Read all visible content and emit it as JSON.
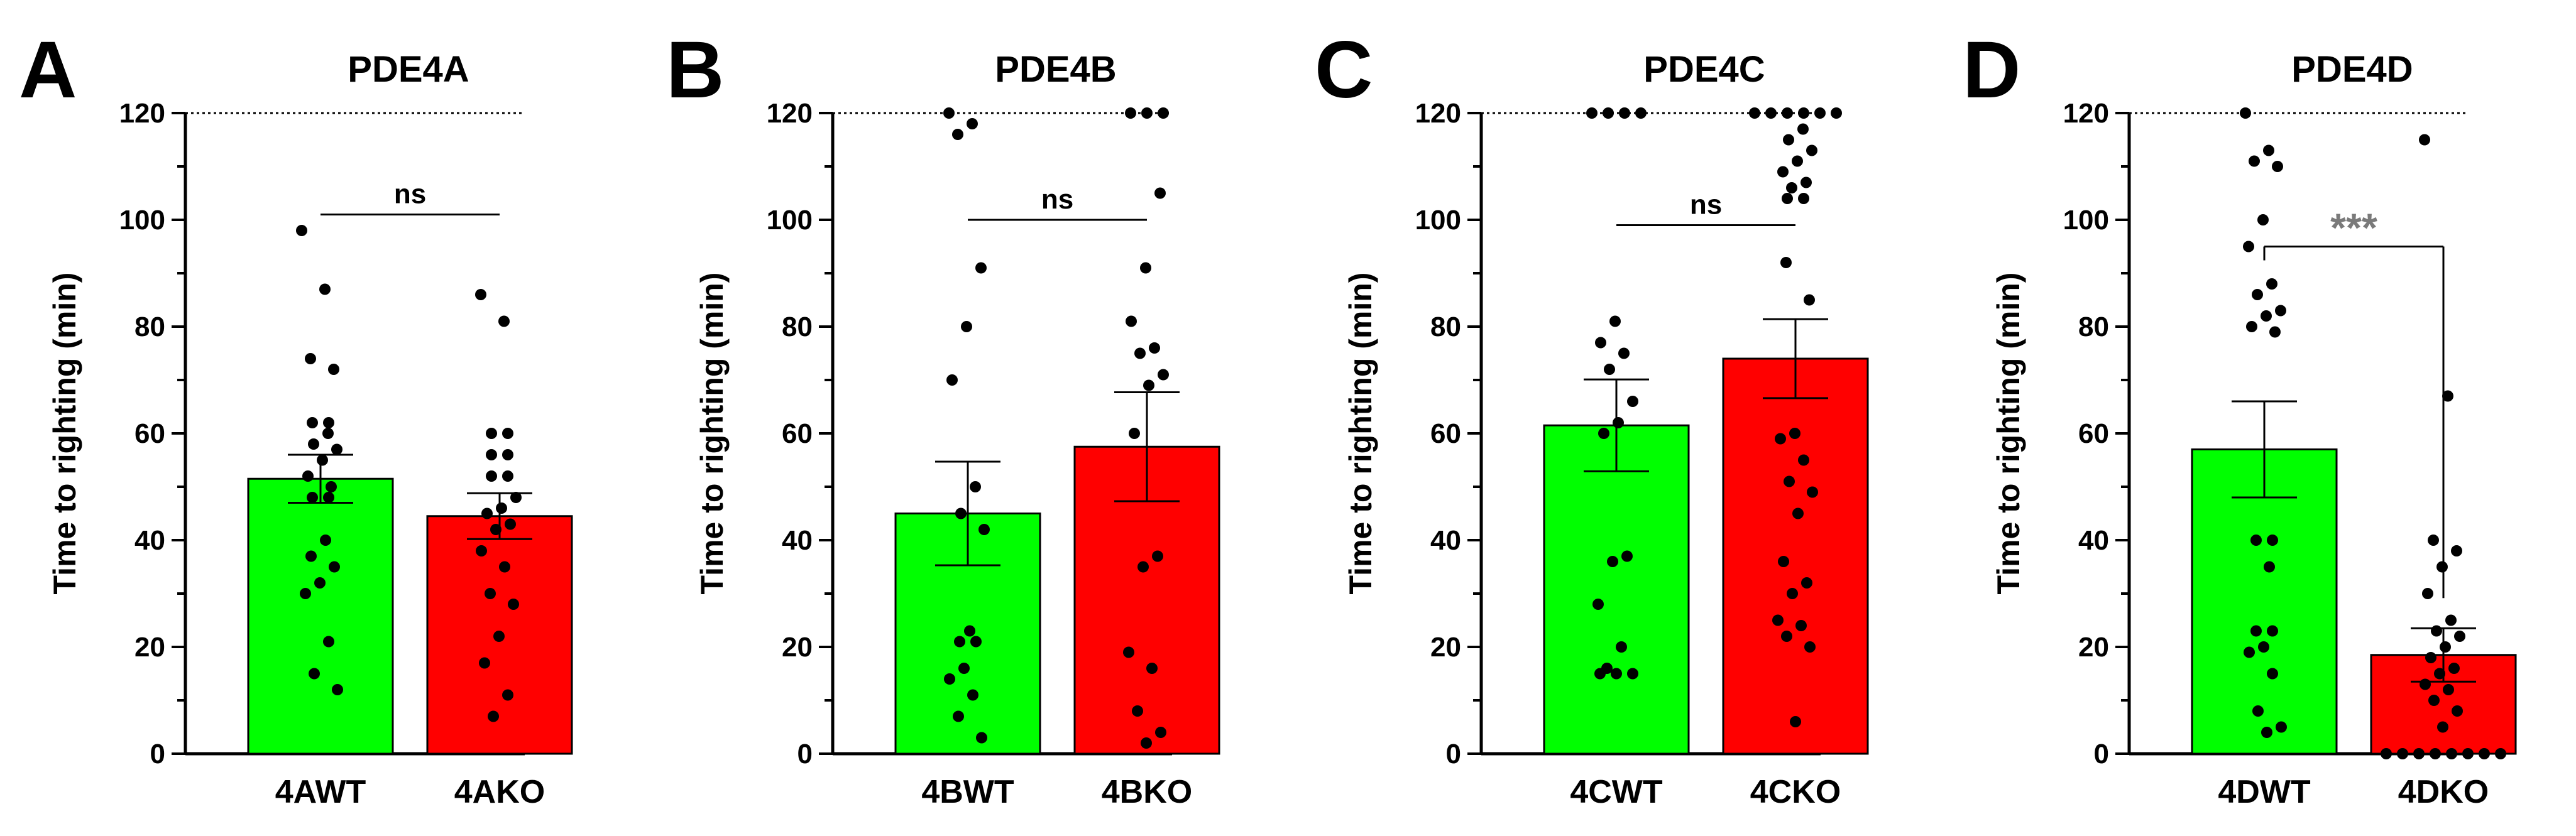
{
  "colors": {
    "wt": "#00ff00",
    "ko": "#ff0000",
    "axis": "#000000",
    "sig_star": "#7a7a7a"
  },
  "chart_data": [
    {
      "type": "bar",
      "panel": "A",
      "title": "PDE4A",
      "ylabel": "Time to righting (min)",
      "ylim": [
        0,
        120
      ],
      "yticks": [
        0,
        20,
        40,
        60,
        80,
        100,
        120
      ],
      "reference_line": 120,
      "categories": [
        "4AWT",
        "4AKO"
      ],
      "values": [
        51.5,
        44.5
      ],
      "sem": [
        4.5,
        4.3
      ],
      "points": [
        [
          98,
          87,
          74,
          72,
          62,
          62,
          60,
          58,
          57,
          55,
          52,
          50,
          48,
          48,
          40,
          37,
          35,
          32,
          30,
          21,
          15,
          12
        ],
        [
          86,
          81,
          60,
          60,
          56,
          56,
          52,
          52,
          48,
          46,
          45,
          43,
          42,
          38,
          35,
          30,
          28,
          22,
          17,
          11,
          7
        ]
      ],
      "significance": {
        "label": "ns",
        "height": 101
      }
    },
    {
      "type": "bar",
      "panel": "B",
      "title": "PDE4B",
      "ylabel": "Time to righting (min)",
      "ylim": [
        0,
        120
      ],
      "yticks": [
        0,
        20,
        40,
        60,
        80,
        100,
        120
      ],
      "reference_line": 120,
      "categories": [
        "4BWT",
        "4BKO"
      ],
      "values": [
        45,
        57.5
      ],
      "sem": [
        9.7,
        10.2
      ],
      "points": [
        [
          120,
          118,
          116,
          91,
          80,
          70,
          50,
          45,
          42,
          23,
          21,
          21,
          16,
          14,
          11,
          7,
          3
        ],
        [
          120,
          120,
          120,
          105,
          91,
          81,
          76,
          75,
          71,
          69,
          60,
          37,
          35,
          19,
          16,
          8,
          4,
          2
        ]
      ],
      "significance": {
        "label": "ns",
        "height": 100
      }
    },
    {
      "type": "bar",
      "panel": "C",
      "title": "PDE4C",
      "ylabel": "Time to righting (min)",
      "ylim": [
        0,
        120
      ],
      "yticks": [
        0,
        20,
        40,
        60,
        80,
        100,
        120
      ],
      "reference_line": 120,
      "categories": [
        "4CWT",
        "4CKO"
      ],
      "values": [
        61.5,
        74
      ],
      "sem": [
        8.6,
        7.4
      ],
      "points": [
        [
          120,
          120,
          120,
          120,
          81,
          77,
          75,
          72,
          66,
          62,
          60,
          37,
          36,
          28,
          20,
          16,
          15,
          15,
          15
        ],
        [
          120,
          120,
          120,
          120,
          120,
          120,
          117,
          115,
          113,
          111,
          109,
          107,
          106,
          104,
          104,
          92,
          85,
          60,
          59,
          55,
          51,
          49,
          45,
          36,
          32,
          30,
          25,
          24,
          22,
          20,
          6
        ]
      ],
      "significance": {
        "label": "ns",
        "height": 99
      }
    },
    {
      "type": "bar",
      "panel": "D",
      "title": "PDE4D",
      "ylabel": "Time to righting (min)",
      "ylim": [
        0,
        120
      ],
      "yticks": [
        0,
        20,
        40,
        60,
        80,
        100,
        120
      ],
      "reference_line": 120,
      "categories": [
        "4DWT",
        "4DKO"
      ],
      "values": [
        57,
        18.5
      ],
      "sem": [
        9,
        5
      ],
      "points": [
        [
          120,
          113,
          111,
          110,
          100,
          95,
          88,
          86,
          83,
          82,
          80,
          79,
          40,
          40,
          35,
          23,
          23,
          20,
          19,
          15,
          8,
          5,
          4
        ],
        [
          115,
          67,
          40,
          38,
          35,
          30,
          25,
          23,
          22,
          20,
          18,
          16,
          15,
          13,
          12,
          10,
          8,
          5,
          0,
          0,
          0,
          0,
          0,
          0,
          0,
          0
        ]
      ],
      "significance": {
        "label": "***",
        "height": 95
      }
    }
  ]
}
